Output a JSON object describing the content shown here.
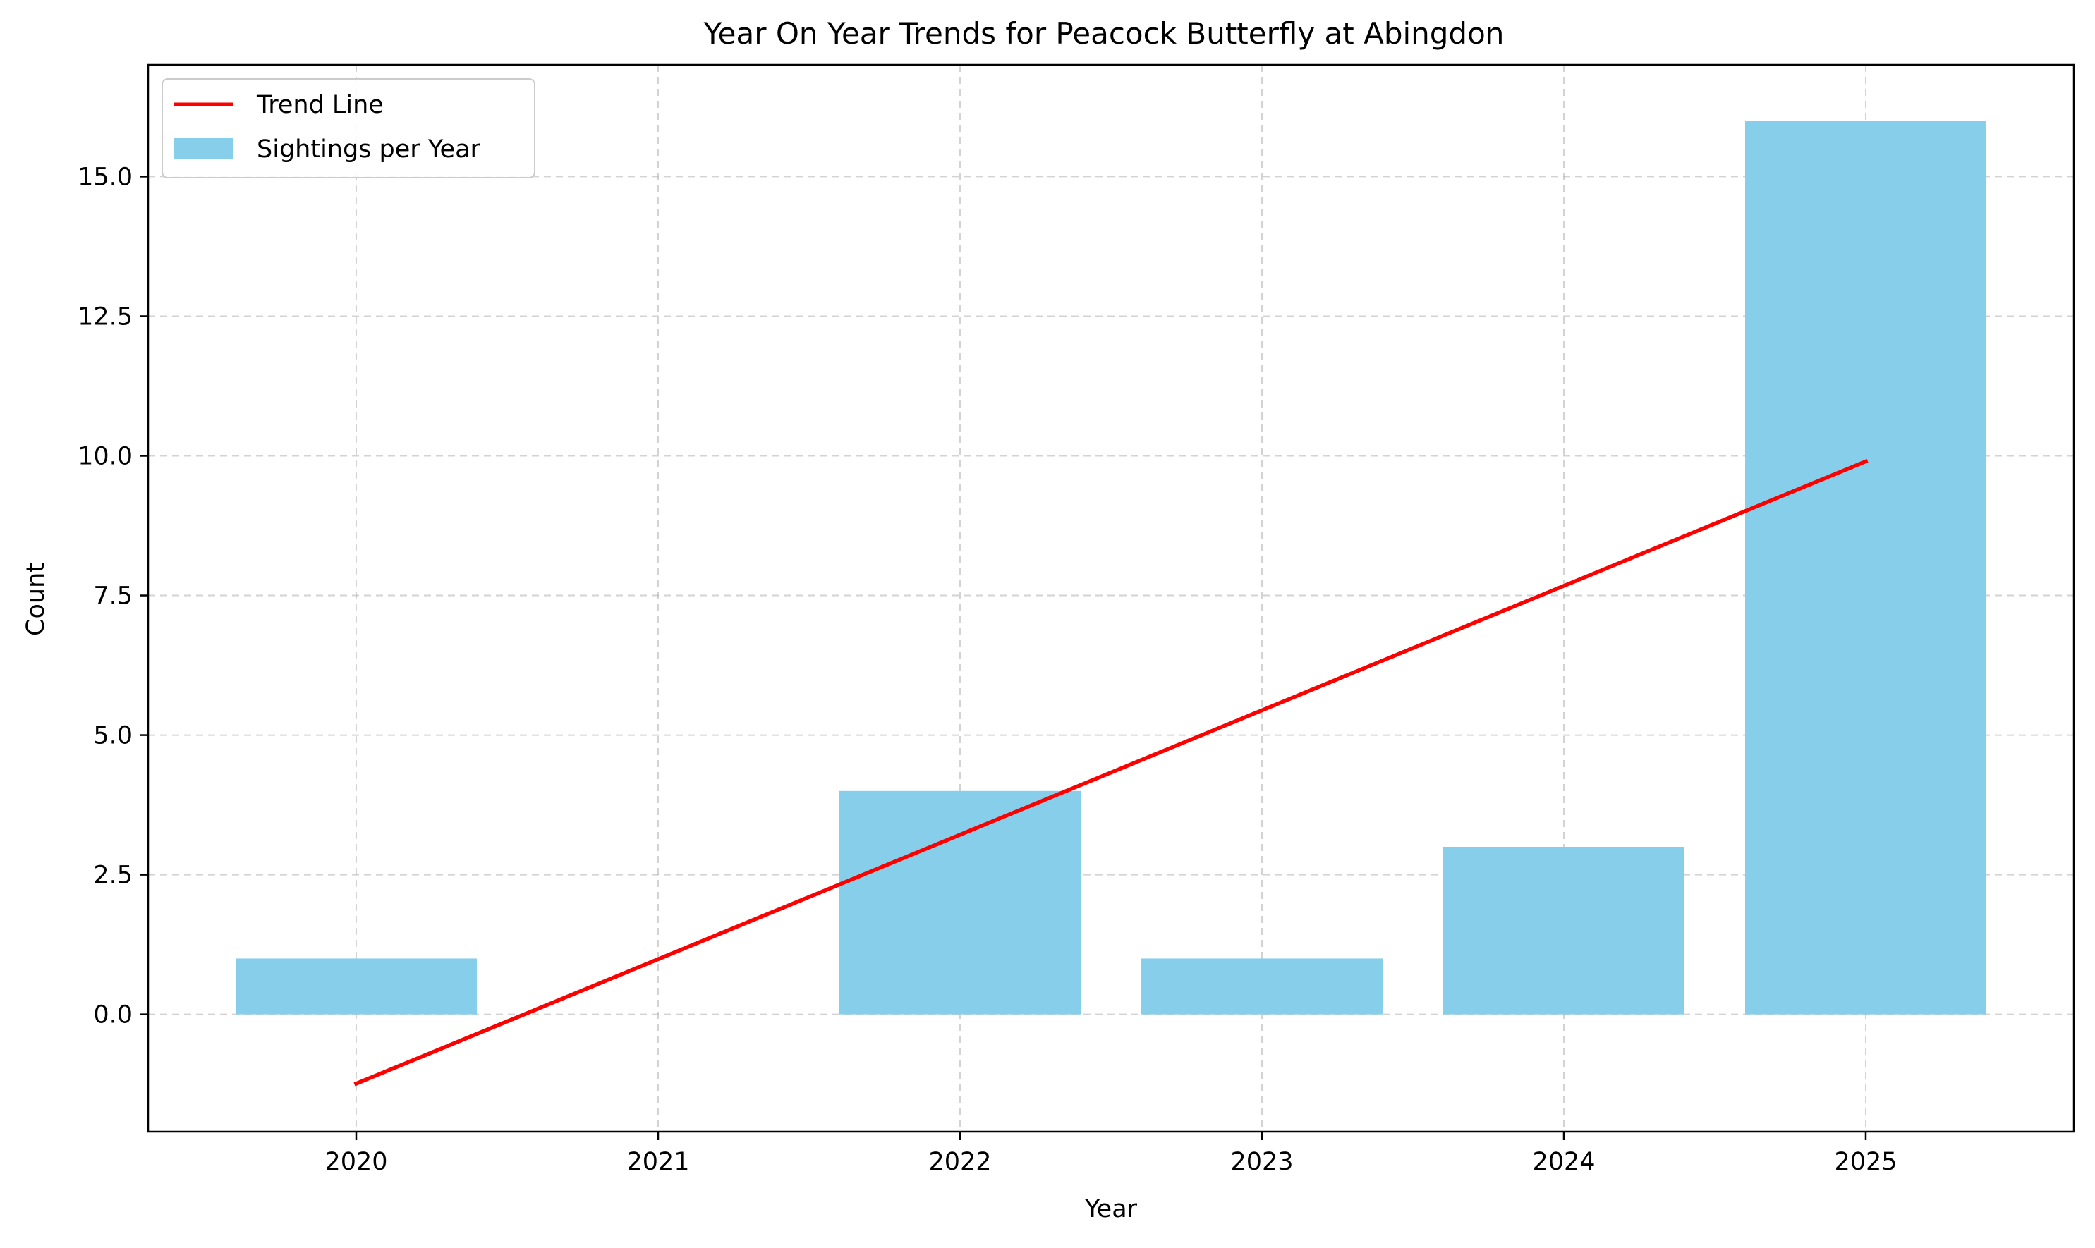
{
  "chart_data": {
    "type": "bar",
    "title": "Year On Year Trends for Peacock Butterfly at Abingdon",
    "xlabel": "Year",
    "ylabel": "Count",
    "categories": [
      "2020",
      "2021",
      "2022",
      "2023",
      "2024",
      "2025"
    ],
    "series": [
      {
        "name": "Sightings per Year",
        "type": "bar",
        "color": "#87ceeb",
        "values": [
          1,
          0,
          4,
          1,
          3,
          16
        ]
      },
      {
        "name": "Trend Line",
        "type": "line",
        "color": "#ff0000",
        "points": [
          {
            "x": "2020",
            "y": -1.24
          },
          {
            "x": "2025",
            "y": 9.9
          }
        ]
      }
    ],
    "ylim": [
      -2.1,
      17.0
    ],
    "yticks": [
      0.0,
      2.5,
      5.0,
      7.5,
      10.0,
      12.5,
      15.0
    ],
    "ytick_labels": [
      "0.0",
      "2.5",
      "5.0",
      "7.5",
      "10.0",
      "12.5",
      "15.0"
    ],
    "grid": true,
    "legend_position": "top-left"
  }
}
